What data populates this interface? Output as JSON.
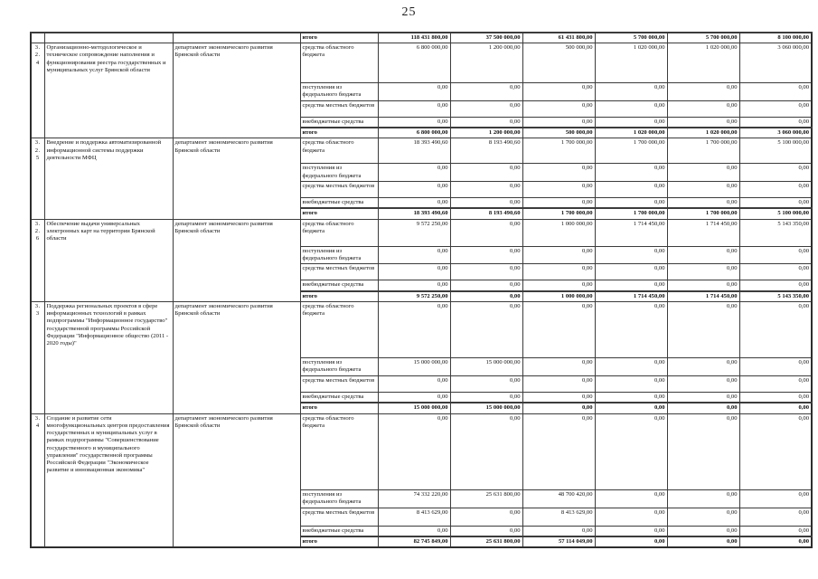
{
  "page": {
    "number": "25"
  },
  "table": {
    "carryover": {
      "label": "итого",
      "values": [
        "118 431 800,00",
        "37 500 000,00",
        "61 431 800,00",
        "5 700 000,00",
        "5 700 000,00",
        "8 100 000,00"
      ]
    },
    "sections": [
      {
        "num": "3.2.4",
        "title": "Организационно-методологическое и техническое сопровождение наполнения и функционирования реестра государственных и муниципальных услуг Брянской области",
        "executor": "департамент экономического развития Брянской области",
        "rows": [
          {
            "label": "средства областного бюджета",
            "values": [
              "6 800 000,00",
              "1 200 000,00",
              "500 000,00",
              "1 020 000,00",
              "1 020 000,00",
              "3 060 000,00"
            ]
          },
          {
            "label": "поступления из федерального бюджета",
            "values": [
              "0,00",
              "0,00",
              "0,00",
              "0,00",
              "0,00",
              "0,00"
            ]
          },
          {
            "label": "средства местных бюджетов",
            "values": [
              "0,00",
              "0,00",
              "0,00",
              "0,00",
              "0,00",
              "0,00"
            ]
          },
          {
            "label": "внебюджетные средства",
            "values": [
              "0,00",
              "0,00",
              "0,00",
              "0,00",
              "0,00",
              "0,00"
            ]
          },
          {
            "label": "итого",
            "values": [
              "6 800 000,00",
              "1 200 000,00",
              "500 000,00",
              "1 020 000,00",
              "1 020 000,00",
              "3 060 000,00"
            ]
          }
        ]
      },
      {
        "num": "3.2.5",
        "title": "Внедрение и поддержка автоматизированной информационной системы поддержки деятельности МФЦ",
        "executor": "департамент экономического развития Брянской области",
        "rows": [
          {
            "label": "средства областного бюджета",
            "values": [
              "18 393 490,60",
              "8 193 490,60",
              "1 700 000,00",
              "1 700 000,00",
              "1 700 000,00",
              "5 100 000,00"
            ]
          },
          {
            "label": "поступления из федерального бюджета",
            "values": [
              "0,00",
              "0,00",
              "0,00",
              "0,00",
              "0,00",
              "0,00"
            ]
          },
          {
            "label": "средства местных бюджетов",
            "values": [
              "0,00",
              "0,00",
              "0,00",
              "0,00",
              "0,00",
              "0,00"
            ]
          },
          {
            "label": "внебюджетные средства",
            "values": [
              "0,00",
              "0,00",
              "0,00",
              "0,00",
              "0,00",
              "0,00"
            ]
          },
          {
            "label": "итого",
            "values": [
              "18 393 490,60",
              "8 193 490,60",
              "1 700 000,00",
              "1 700 000,00",
              "1 700 000,00",
              "5 100 000,00"
            ]
          }
        ]
      },
      {
        "num": "3.2.6",
        "title": "Обеспечение выдачи универсальных электронных карт на территории Брянской области",
        "executor": "департамент экономического развития Брянской области",
        "rows": [
          {
            "label": "средства областного бюджета",
            "values": [
              "9 572 250,00",
              "0,00",
              "1 000 000,00",
              "1 714 450,00",
              "1 714 450,00",
              "5 143 350,00"
            ]
          },
          {
            "label": "поступления из федерального бюджета",
            "values": [
              "0,00",
              "0,00",
              "0,00",
              "0,00",
              "0,00",
              "0,00"
            ]
          },
          {
            "label": "средства местных бюджетов",
            "values": [
              "0,00",
              "0,00",
              "0,00",
              "0,00",
              "0,00",
              "0,00"
            ]
          },
          {
            "label": "внебюджетные средства",
            "values": [
              "0,00",
              "0,00",
              "0,00",
              "0,00",
              "0,00",
              "0,00"
            ]
          },
          {
            "label": "итого",
            "values": [
              "9 572 250,00",
              "0,00",
              "1 000 000,00",
              "1 714 450,00",
              "1 714 450,00",
              "5 143 350,00"
            ]
          }
        ]
      },
      {
        "num": "3.3",
        "title": "Поддержка региональных проектов в сфере информационных технологий в рамках подпрограммы \"Информационное государство\" государственной программы Российской Федерации \"Информационное общество (2011 - 2020 годы)\"",
        "executor": "департамент экономического развития Брянской области",
        "rows": [
          {
            "label": "средства областного бюджета",
            "values": [
              "0,00",
              "0,00",
              "0,00",
              "0,00",
              "0,00",
              "0,00"
            ]
          },
          {
            "label": "поступления из федерального бюджета",
            "values": [
              "15 000 000,00",
              "15 000 000,00",
              "0,00",
              "0,00",
              "0,00",
              "0,00"
            ]
          },
          {
            "label": "средства местных бюджетов",
            "values": [
              "0,00",
              "0,00",
              "0,00",
              "0,00",
              "0,00",
              "0,00"
            ]
          },
          {
            "label": "внебюджетные средства",
            "values": [
              "0,00",
              "0,00",
              "0,00",
              "0,00",
              "0,00",
              "0,00"
            ]
          },
          {
            "label": "итого",
            "values": [
              "15 000 000,00",
              "15 000 000,00",
              "0,00",
              "0,00",
              "0,00",
              "0,00"
            ]
          }
        ]
      },
      {
        "num": "3.4",
        "title": "Создание и развитие сети многофункциональных центров предоставления государственных и муниципальных услуг в рамках подпрограммы \"Совершенствование государственного и муниципального управления\" государственной программы Российской Федерации \"Экономическое развитие и инновационная экономика\"",
        "executor": "департамент экономического развития Брянской области",
        "rows": [
          {
            "label": "средства областного бюджета",
            "values": [
              "0,00",
              "0,00",
              "0,00",
              "0,00",
              "0,00",
              "0,00"
            ]
          },
          {
            "label": "поступления из федерального бюджета",
            "values": [
              "74 332 220,00",
              "25 631 800,00",
              "48 700 420,00",
              "0,00",
              "0,00",
              "0,00"
            ]
          },
          {
            "label": "средства местных бюджетов",
            "values": [
              "8 413 629,00",
              "0,00",
              "8 413 629,00",
              "0,00",
              "0,00",
              "0,00"
            ]
          },
          {
            "label": "внебюджетные средства",
            "values": [
              "0,00",
              "0,00",
              "0,00",
              "0,00",
              "0,00",
              "0,00"
            ]
          },
          {
            "label": "итого",
            "values": [
              "82 745 849,00",
              "25 631 800,00",
              "57 114 049,00",
              "0,00",
              "0,00",
              "0,00"
            ]
          }
        ]
      }
    ]
  }
}
